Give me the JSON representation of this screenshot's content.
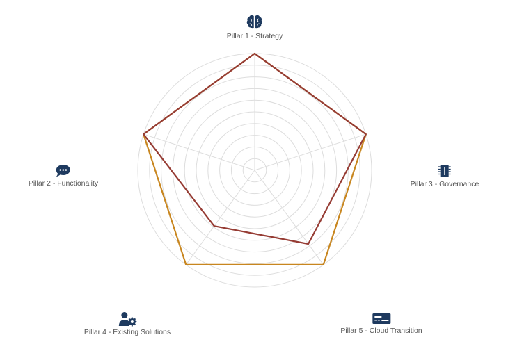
{
  "chart_data": {
    "type": "radar",
    "axes": [
      {
        "label": "Pillar 1 - Strategy",
        "icon": "brain-icon"
      },
      {
        "label": "Pillar 3 - Governance",
        "icon": "chip-icon"
      },
      {
        "label": "Pillar 5 - Cloud Transition",
        "icon": "server-card-icon"
      },
      {
        "label": "Pillar 4 - Existing Solutions",
        "icon": "user-gear-icon"
      },
      {
        "label": "Pillar 2 - Functionality",
        "icon": "chat-bubble-icon"
      }
    ],
    "rmax": 10,
    "rings": 10,
    "grid": true,
    "series": [
      {
        "color": "#c8861f",
        "values": [
          10,
          10,
          10,
          10,
          10
        ]
      },
      {
        "color": "#963c34",
        "values": [
          10,
          10,
          7.8,
          5.9,
          10
        ]
      }
    ]
  },
  "colors": {
    "icon": "#1e3a5f",
    "grid": "#dddddd"
  }
}
